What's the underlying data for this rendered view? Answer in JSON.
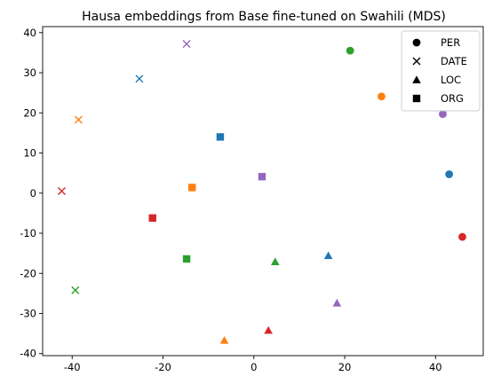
{
  "chart_data": {
    "type": "scatter",
    "title": "Hausa embeddings from Base fine-tuned on Swahili (MDS)",
    "xlabel": "",
    "ylabel": "",
    "xlim": [
      -46.5,
      50.5
    ],
    "ylim": [
      -40.5,
      41.5
    ],
    "xticks": [
      -40,
      -20,
      0,
      20,
      40
    ],
    "yticks": [
      -40,
      -30,
      -20,
      -10,
      0,
      10,
      20,
      30,
      40
    ],
    "grid": false,
    "legend_position": "top-right",
    "legend": [
      {
        "label": "PER",
        "marker": "circle"
      },
      {
        "label": "DATE",
        "marker": "x"
      },
      {
        "label": "LOC",
        "marker": "triangle"
      },
      {
        "label": "ORG",
        "marker": "square"
      }
    ],
    "colors": {
      "blue": "#1f77b4",
      "orange": "#ff7f0e",
      "green": "#2ca02c",
      "red": "#d62728",
      "purple": "#9467bd"
    },
    "points": [
      {
        "x": 21.2,
        "y": 35.5,
        "marker": "circle",
        "color": "green"
      },
      {
        "x": 28.1,
        "y": 24.1,
        "marker": "circle",
        "color": "orange"
      },
      {
        "x": 41.6,
        "y": 19.7,
        "marker": "circle",
        "color": "purple"
      },
      {
        "x": 43.0,
        "y": 4.7,
        "marker": "circle",
        "color": "blue"
      },
      {
        "x": 45.9,
        "y": -10.9,
        "marker": "circle",
        "color": "red"
      },
      {
        "x": -14.8,
        "y": 37.2,
        "marker": "x",
        "color": "purple"
      },
      {
        "x": -25.2,
        "y": 28.5,
        "marker": "x",
        "color": "blue"
      },
      {
        "x": -38.6,
        "y": 18.3,
        "marker": "x",
        "color": "orange"
      },
      {
        "x": -42.3,
        "y": 0.5,
        "marker": "x",
        "color": "red"
      },
      {
        "x": -39.3,
        "y": -24.2,
        "marker": "x",
        "color": "green"
      },
      {
        "x": 4.7,
        "y": -17.1,
        "marker": "triangle",
        "color": "green"
      },
      {
        "x": 16.4,
        "y": -15.6,
        "marker": "triangle",
        "color": "blue"
      },
      {
        "x": 18.3,
        "y": -27.4,
        "marker": "triangle",
        "color": "purple"
      },
      {
        "x": 3.2,
        "y": -34.2,
        "marker": "triangle",
        "color": "red"
      },
      {
        "x": -6.5,
        "y": -36.7,
        "marker": "triangle",
        "color": "orange"
      },
      {
        "x": -7.4,
        "y": 14.0,
        "marker": "square",
        "color": "blue"
      },
      {
        "x": 1.8,
        "y": 4.1,
        "marker": "square",
        "color": "purple"
      },
      {
        "x": -13.6,
        "y": 1.4,
        "marker": "square",
        "color": "orange"
      },
      {
        "x": -22.3,
        "y": -6.2,
        "marker": "square",
        "color": "red"
      },
      {
        "x": -14.8,
        "y": -16.4,
        "marker": "square",
        "color": "green"
      }
    ]
  }
}
